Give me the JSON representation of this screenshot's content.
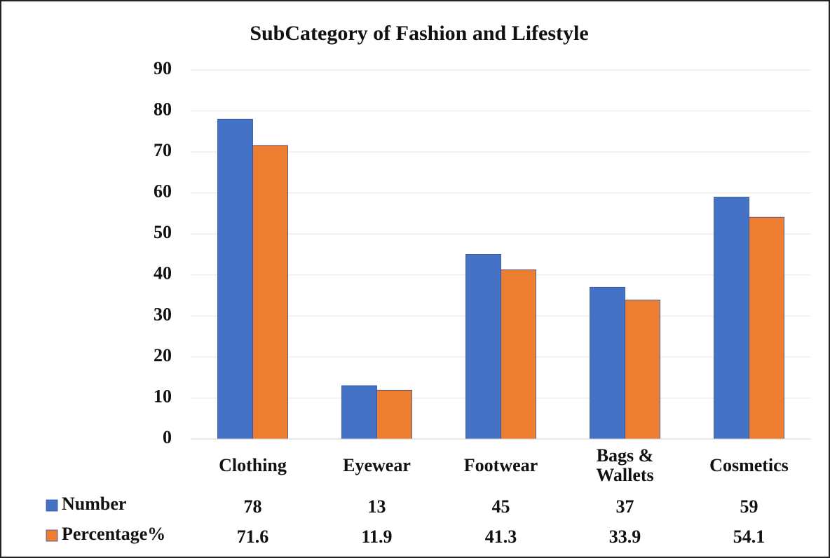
{
  "chart_data": {
    "type": "bar",
    "title": "SubCategory of Fashion and Lifestyle",
    "categories": [
      "Clothing",
      "Eyewear",
      "Footwear",
      "Bags & Wallets",
      "Cosmetics"
    ],
    "series": [
      {
        "name": "Number",
        "color": "#4472c4",
        "values": [
          78,
          13,
          45,
          37,
          59
        ]
      },
      {
        "name": "Percentage%",
        "color": "#ed7d31",
        "values": [
          71.6,
          11.9,
          41.3,
          33.9,
          54.1
        ]
      }
    ],
    "ylim": [
      0,
      90
    ],
    "yticks": [
      0,
      10,
      20,
      30,
      40,
      50,
      60,
      70,
      80,
      90
    ],
    "grid": true,
    "data_table": true
  }
}
